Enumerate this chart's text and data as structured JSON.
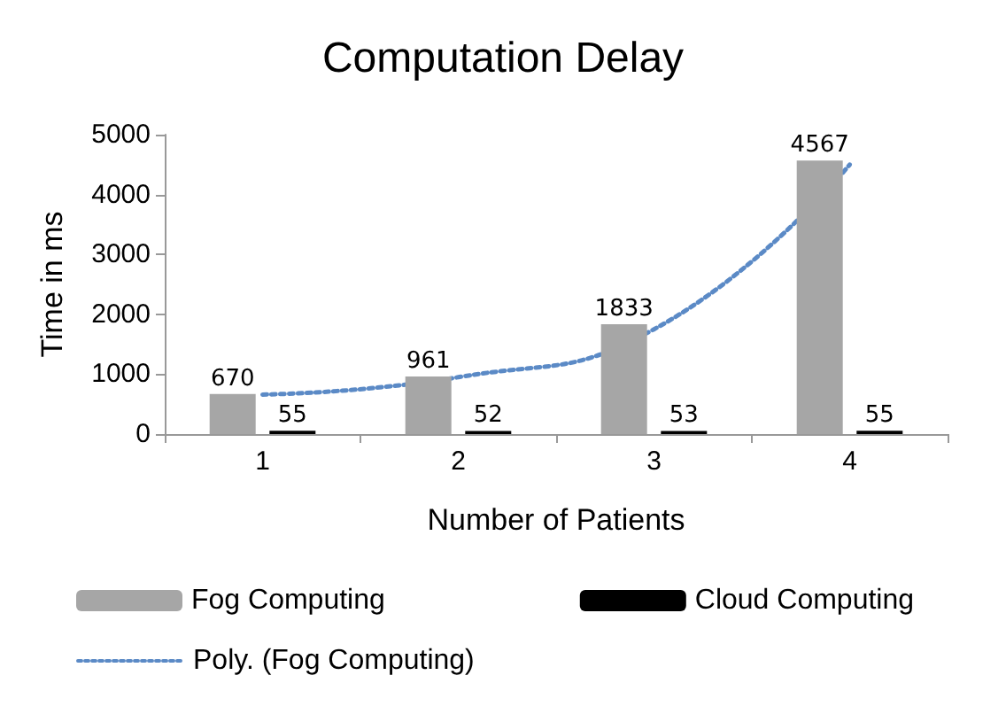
{
  "chart_data": {
    "type": "bar",
    "title": "Computation Delay",
    "xlabel": "Number of Patients",
    "ylabel": "Time in ms",
    "categories": [
      "1",
      "2",
      "3",
      "4"
    ],
    "series": [
      {
        "name": "Fog Computing",
        "color": "#a6a6a6",
        "values": [
          670,
          961,
          1833,
          4567
        ],
        "value_labels": [
          "670",
          "961",
          "1833",
          "4567"
        ]
      },
      {
        "name": "Cloud Computing",
        "color": "#000000",
        "values": [
          55,
          52,
          53,
          55
        ],
        "value_labels": [
          "55",
          "52",
          "53",
          "55"
        ]
      },
      {
        "name": "Poly. (Fog Computing)",
        "type": "line",
        "color": "#5b8ac6",
        "line_style": "dotted",
        "marker": "none",
        "values": [
          660,
          950,
          1750,
          4500
        ]
      }
    ],
    "ylim": [
      0,
      5000
    ],
    "yticks": [
      0,
      1000,
      2000,
      3000,
      4000,
      5000
    ],
    "grid": false,
    "legend": "bottom"
  }
}
